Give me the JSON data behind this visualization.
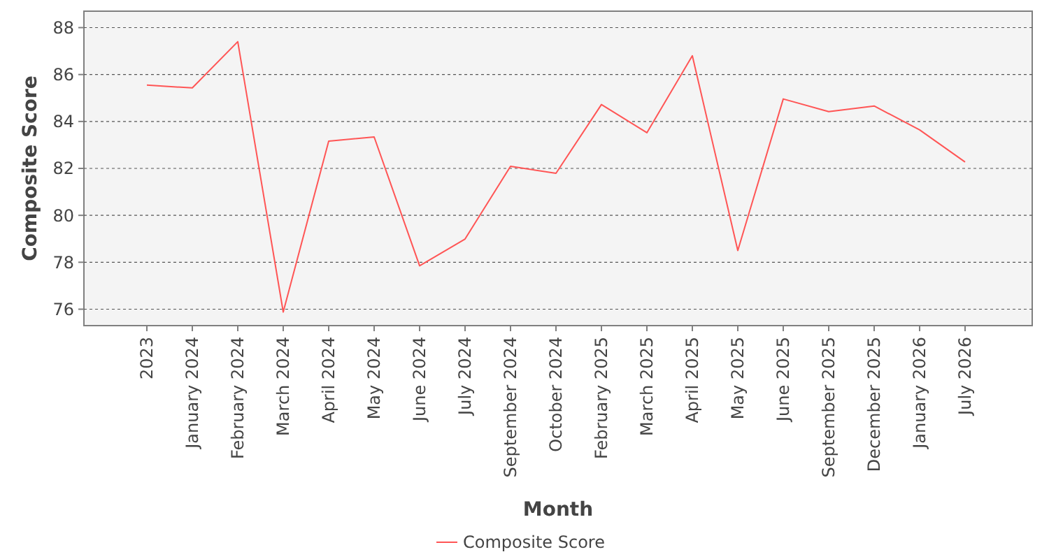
{
  "chart_data": {
    "type": "line",
    "xlabel": "Month",
    "ylabel": "Composite Score",
    "categories": [
      "2023",
      "January 2024",
      "February 2024",
      "March 2024",
      "April 2024",
      "May 2024",
      "June 2024",
      "July 2024",
      "September 2024",
      "October 2024",
      "February 2025",
      "March 2025",
      "April 2025",
      "May 2025",
      "June 2025",
      "September 2025",
      "December 2025",
      "January 2026",
      "July 2026"
    ],
    "series": [
      {
        "name": "Composite Score",
        "color": "#ff5555",
        "values": [
          85.55,
          85.43,
          87.4,
          75.88,
          83.16,
          83.34,
          77.85,
          78.99,
          82.09,
          81.79,
          84.72,
          83.52,
          86.8,
          78.5,
          84.96,
          84.42,
          84.66,
          83.64,
          82.27
        ]
      }
    ],
    "ylim": [
      75.3,
      88.7
    ],
    "yticks": [
      76,
      78,
      80,
      82,
      84,
      86,
      88
    ],
    "grid": "y",
    "legend": "bottom",
    "marker": "none",
    "line_style": "solid"
  }
}
